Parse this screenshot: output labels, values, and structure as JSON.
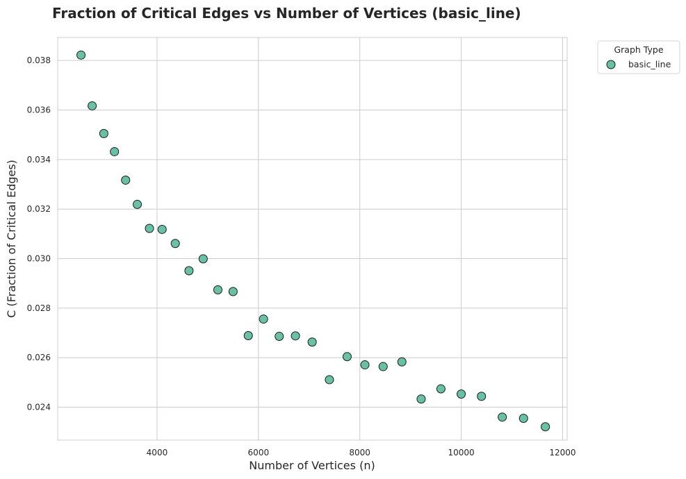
{
  "chart_data": {
    "type": "scatter",
    "title": "Fraction of Critical Edges vs Number of Vertices (basic_line)",
    "xlabel": "Number of Vertices (n)",
    "ylabel": "C (Fraction of Critical Edges)",
    "xlim": [
      2040,
      12090
    ],
    "ylim": [
      0.02267,
      0.03893
    ],
    "xticks": [
      4000,
      6000,
      8000,
      10000,
      12000
    ],
    "xtick_labels": [
      "4000",
      "6000",
      "8000",
      "10000",
      "12000"
    ],
    "yticks": [
      0.024,
      0.026,
      0.028,
      0.03,
      0.032,
      0.034,
      0.036,
      0.038
    ],
    "ytick_labels": [
      "0.024",
      "0.026",
      "0.028",
      "0.030",
      "0.032",
      "0.034",
      "0.036",
      "0.038"
    ],
    "grid": true,
    "legend": {
      "title": "Graph Type",
      "placement": "outside-top-right"
    },
    "marker_color": "#66c2a5",
    "marker_edge_color": "#1a1a1a",
    "series": [
      {
        "name": "basic_line",
        "x": [
          2500,
          2720,
          2950,
          3160,
          3380,
          3610,
          3850,
          4100,
          4360,
          4630,
          4910,
          5200,
          5500,
          5800,
          6100,
          6410,
          6730,
          7060,
          7400,
          7750,
          8100,
          8460,
          8830,
          9210,
          9600,
          10000,
          10400,
          10810,
          11230,
          11660
        ],
        "y": [
          0.03822,
          0.03617,
          0.03505,
          0.03432,
          0.03317,
          0.03219,
          0.03122,
          0.03118,
          0.03061,
          0.02951,
          0.02999,
          0.02874,
          0.02867,
          0.02689,
          0.02756,
          0.02686,
          0.02688,
          0.02663,
          0.02511,
          0.02604,
          0.02571,
          0.02564,
          0.02583,
          0.02433,
          0.02474,
          0.02453,
          0.02444,
          0.0236,
          0.02355,
          0.02321
        ]
      }
    ]
  }
}
